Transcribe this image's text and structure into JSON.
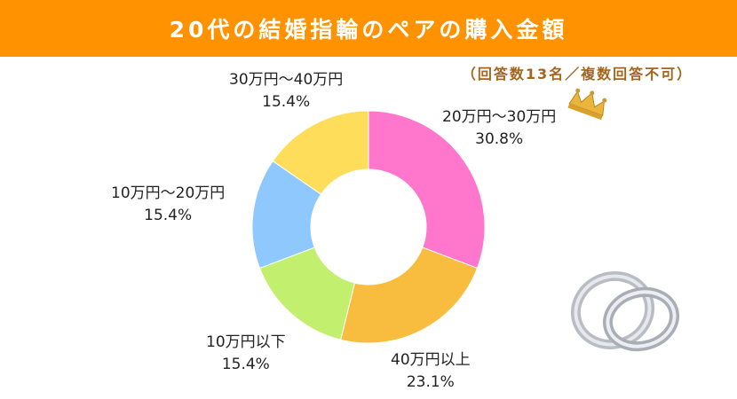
{
  "chart_data": {
    "type": "pie",
    "donut": true,
    "title": "20代の結婚指輪のペアの購入金額",
    "subtitle": "（回答数13名／複数回答不可）",
    "slices": [
      {
        "label": "20万円〜30万円",
        "value": 30.8,
        "value_label": "30.8%",
        "color": "#ff77cc"
      },
      {
        "label": "40万円以上",
        "value": 23.1,
        "value_label": "23.1%",
        "color": "#f8bd3f"
      },
      {
        "label": "10万円以下",
        "value": 15.4,
        "value_label": "15.4%",
        "color": "#c3ef6f"
      },
      {
        "label": "10万円〜20万円",
        "value": 15.4,
        "value_label": "15.4%",
        "color": "#8ec8fd"
      },
      {
        "label": "30万円〜40万円",
        "value": 15.4,
        "value_label": "15.4%",
        "color": "#fedd5b"
      }
    ]
  },
  "colors": {
    "header": "#ff9200",
    "subtitle": "#a3641c"
  },
  "icons": [
    "crown-icon",
    "wedding-rings-icon"
  ]
}
